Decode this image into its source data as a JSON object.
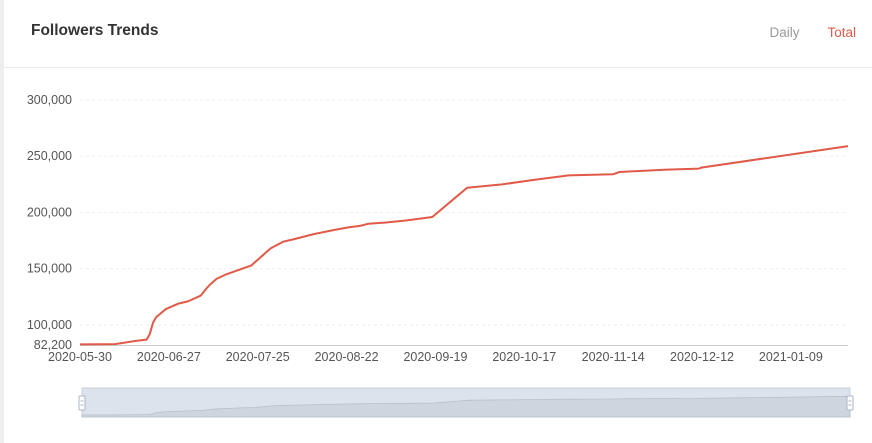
{
  "header": {
    "title": "Followers Trends",
    "tabs": [
      {
        "label": "Daily",
        "active": false
      },
      {
        "label": "Total",
        "active": true
      }
    ]
  },
  "colors": {
    "line": "#e05a47",
    "active_tab": "#e05a47",
    "inactive_tab": "#9a9a9a",
    "slider_fill": "#dde3ec",
    "slider_area": "#c5ccd6"
  },
  "chart_data": {
    "type": "line",
    "title": "",
    "xlabel": "",
    "ylabel": "",
    "ylim": [
      82200,
      300000
    ],
    "y_ticks": [
      82200,
      100000,
      150000,
      200000,
      250000,
      300000
    ],
    "y_tick_labels": [
      "82,200",
      "100,000",
      "150,000",
      "200,000",
      "250,000",
      "300,000"
    ],
    "x_ticks": [
      "2020-05-30",
      "2020-06-27",
      "2020-07-25",
      "2020-08-22",
      "2020-09-19",
      "2020-10-17",
      "2020-11-14",
      "2020-12-12",
      "2021-01-09"
    ],
    "grid": true,
    "legend": "none",
    "series": [
      {
        "x": [
          "2020-05-30",
          "2020-06-10",
          "2020-06-17",
          "2020-06-20",
          "2020-06-21",
          "2020-06-22",
          "2020-06-23",
          "2020-06-26",
          "2020-06-30",
          "2020-07-03",
          "2020-07-07",
          "2020-07-09",
          "2020-07-10",
          "2020-07-12",
          "2020-07-15",
          "2020-07-19",
          "2020-07-23",
          "2020-07-27",
          "2020-07-29",
          "2020-08-02",
          "2020-08-05",
          "2020-08-12",
          "2020-08-19",
          "2020-08-23",
          "2020-08-26",
          "2020-08-29",
          "2020-09-03",
          "2020-09-10",
          "2020-09-18",
          "2020-09-29",
          "2020-10-10",
          "2020-10-20",
          "2020-10-31",
          "2020-11-14",
          "2020-11-16",
          "2020-11-30",
          "2020-12-11",
          "2020-12-12",
          "2021-01-27"
        ],
        "y": [
          82700,
          83000,
          86000,
          87000,
          92000,
          102000,
          107000,
          114000,
          119000,
          121000,
          126000,
          133000,
          136000,
          141000,
          145000,
          149000,
          153000,
          163000,
          168000,
          174000,
          176000,
          181000,
          185000,
          187000,
          188000,
          190000,
          191000,
          193000,
          196000,
          222000,
          225000,
          229000,
          233000,
          234000,
          236000,
          238000,
          239000,
          240000,
          259000
        ]
      }
    ]
  }
}
